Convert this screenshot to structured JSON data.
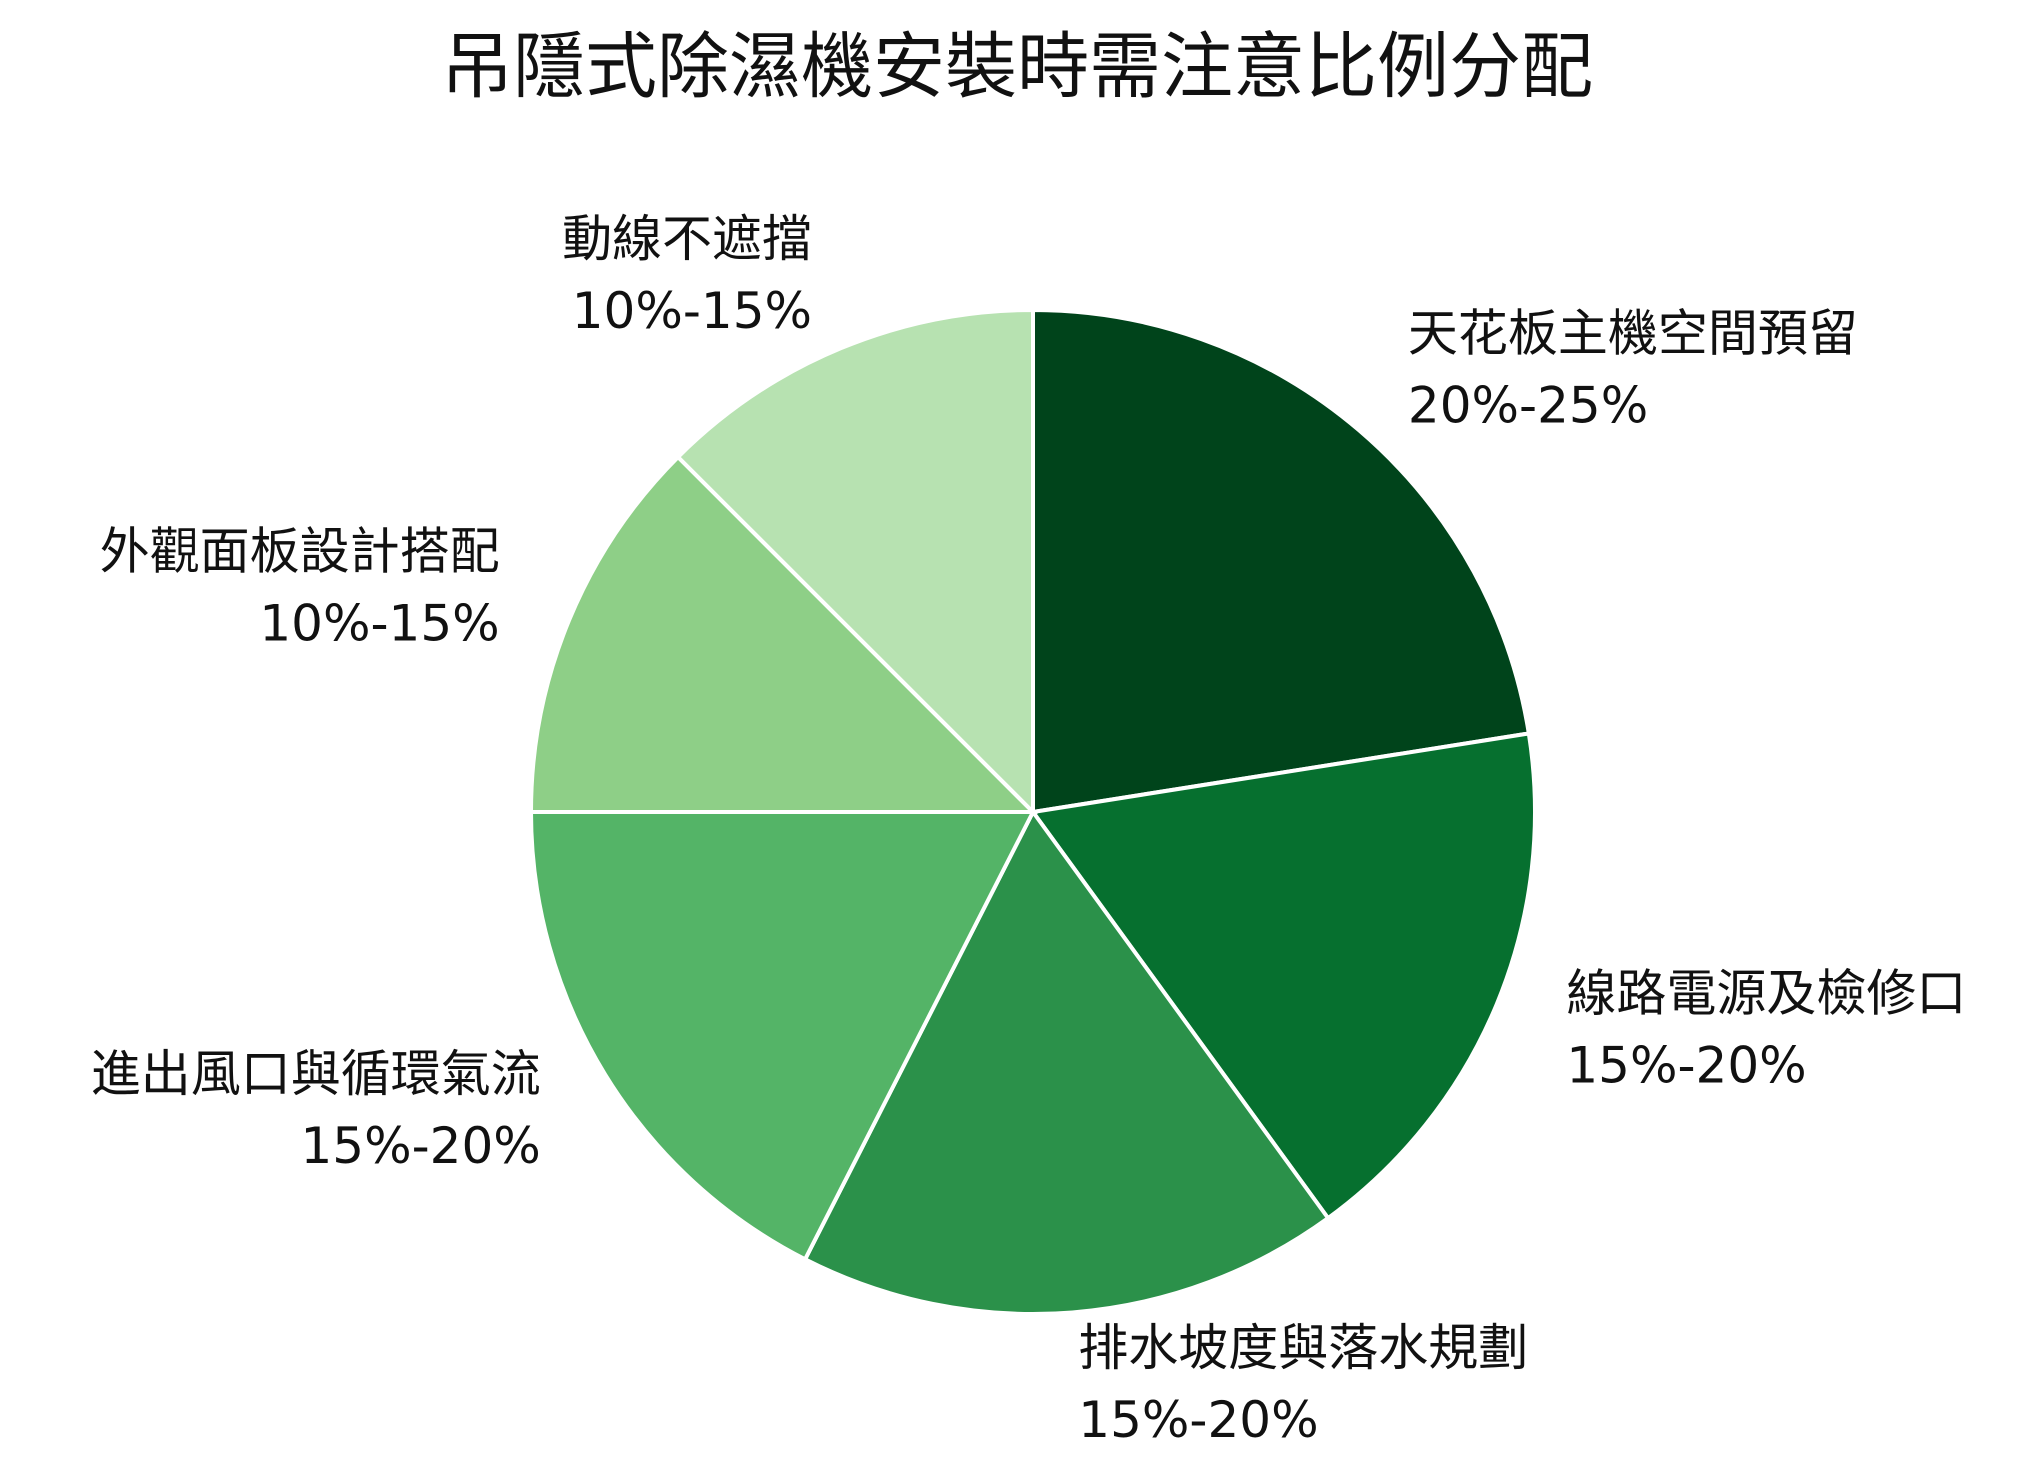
{
  "chart_data": {
    "type": "pie",
    "title": "吊隱式除濕機安裝時需注意比例分配",
    "categories": [
      "天花板主機空間預留",
      "線路電源及檢修口",
      "排水坡度與落水規劃",
      "進出風口與循環氣流",
      "外觀面板設計搭配",
      "動線不遮擋"
    ],
    "values": [
      22.5,
      17.5,
      17.5,
      17.5,
      12.5,
      12.5
    ],
    "value_labels": [
      "20%-25%",
      "15%-20%",
      "15%-20%",
      "15%-20%",
      "10%-15%",
      "10%-15%"
    ],
    "colors": [
      "#00441b",
      "#06702f",
      "#2b914a",
      "#54b467",
      "#8ecf87",
      "#b7e2b1"
    ]
  }
}
